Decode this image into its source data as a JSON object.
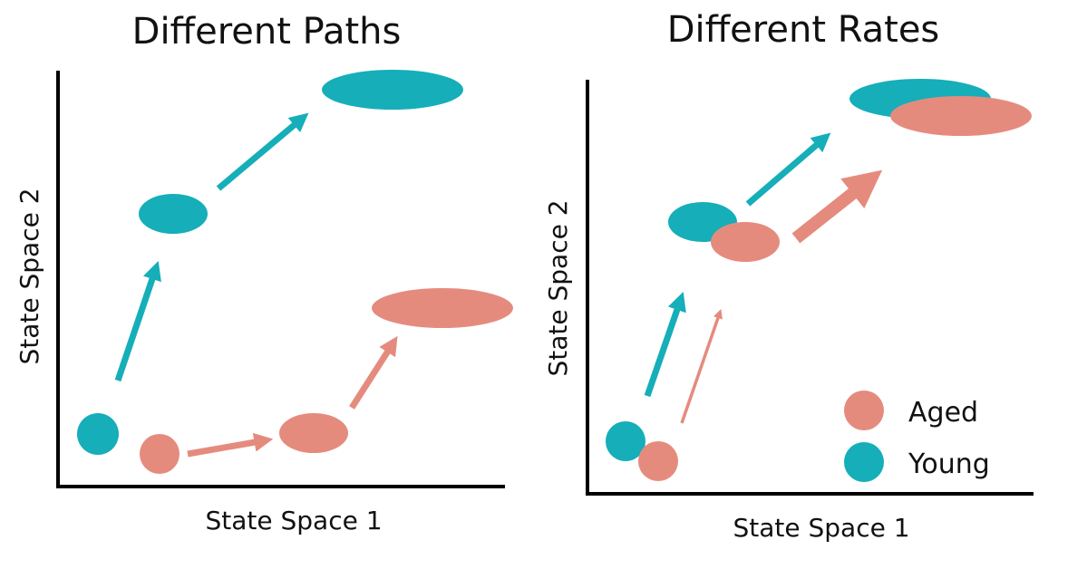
{
  "colors": {
    "young": "#15AEB9",
    "aged": "#E58B7E",
    "axis": "#000000",
    "text": "#111111"
  },
  "panels": [
    {
      "title": "Different Paths",
      "xlabel": "State Space 1",
      "ylabel": "State Space 2"
    },
    {
      "title": "Different Rates",
      "xlabel": "State Space 1",
      "ylabel": "State Space 2"
    }
  ],
  "legend": {
    "items": [
      {
        "label": "Aged",
        "color": "#E58B7E"
      },
      {
        "label": "Young",
        "color": "#15AEB9"
      }
    ]
  }
}
